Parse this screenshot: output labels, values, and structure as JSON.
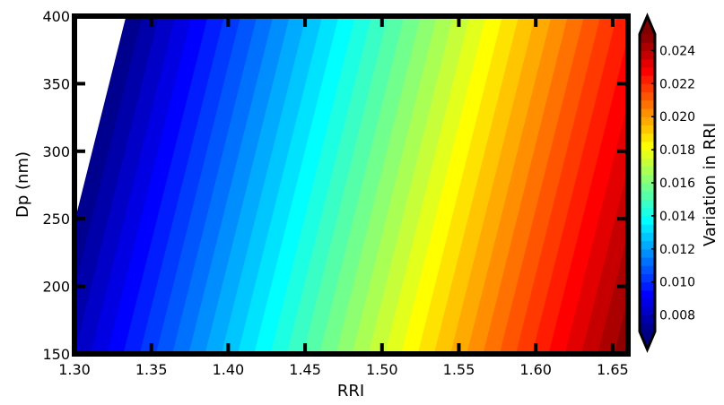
{
  "chart_data": {
    "type": "heatmap",
    "subtype": "filled-contour",
    "title": "",
    "xlabel": "RRI",
    "ylabel": "Dp (nm)",
    "xlim": [
      1.3,
      1.66
    ],
    "ylim": [
      150,
      400
    ],
    "xticks": [
      "1.30",
      "1.35",
      "1.40",
      "1.45",
      "1.50",
      "1.55",
      "1.60",
      "1.65"
    ],
    "yticks": [
      "150",
      "200",
      "250",
      "300",
      "350",
      "400"
    ],
    "colorbar": {
      "label": "Variation in RRI",
      "range": [
        0.007,
        0.025
      ],
      "ticks": [
        "0.008",
        "0.010",
        "0.012",
        "0.014",
        "0.016",
        "0.018",
        "0.020",
        "0.022",
        "0.024"
      ],
      "extend": "both",
      "colormap": "jet"
    },
    "contour_levels": [
      0.007,
      0.0075,
      0.008,
      0.0085,
      0.009,
      0.0095,
      0.01,
      0.0105,
      0.011,
      0.0115,
      0.012,
      0.0125,
      0.013,
      0.0135,
      0.014,
      0.0145,
      0.015,
      0.0155,
      0.016,
      0.0165,
      0.017,
      0.0175,
      0.018,
      0.0185,
      0.019,
      0.0195,
      0.02,
      0.0205,
      0.021,
      0.0215,
      0.022,
      0.0225,
      0.023,
      0.0235,
      0.024,
      0.0245,
      0.025
    ],
    "field": {
      "description": "Variation in RRI increases roughly linearly with RRI; contours tilt toward lower RRI as Dp decreases",
      "value_at_rri_130": 0.008,
      "slope_per_rri": 0.047,
      "dp_shift_rri_at_150nm": 0.0,
      "dp_shift_rri_at_400nm": 0.055
    },
    "grid": false,
    "legend": "colorbar-right"
  }
}
